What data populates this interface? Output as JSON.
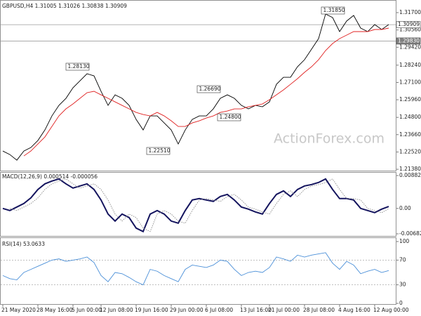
{
  "chart_data": [
    {
      "type": "line",
      "title": "GBPUSD,H4 1.31005 1.31026 1.30838 1.30909",
      "watermark": "ActionForex.com",
      "categories": [
        "21 May 2020",
        null,
        null,
        null,
        null,
        "28 May 16:00",
        null,
        null,
        null,
        null,
        "5 Jun 00:00",
        null,
        null,
        null,
        "12 Jun 08:00",
        null,
        null,
        null,
        null,
        "19 Jun 16:00",
        null,
        null,
        null,
        null,
        "29 Jun 00:00",
        null,
        null,
        null,
        null,
        "6 Jul 08:00",
        null,
        null,
        null,
        null,
        "13 Jul 16:00",
        null,
        null,
        null,
        "21 Jul 00:00",
        null,
        null,
        null,
        null,
        "28 Jul 08:00",
        null,
        null,
        null,
        null,
        "4 Aug 16:00",
        null,
        null,
        null,
        null,
        "12 Aug 00:00",
        null,
        null
      ],
      "series": [
        {
          "color": "#000000",
          "values": [
            1.22583,
            1.22351,
            1.21981,
            1.22583,
            1.22814,
            1.23277,
            1.23971,
            1.24897,
            1.25591,
            1.26054,
            1.26748,
            1.27211,
            1.27674,
            1.27535,
            1.26517,
            1.25591,
            1.26285,
            1.26054,
            1.25591,
            1.24665,
            1.23971,
            1.24897,
            1.24897,
            1.24434,
            1.23971,
            1.23046,
            1.23971,
            1.24665,
            1.24897,
            1.24897,
            1.2536,
            1.26054,
            1.26285,
            1.26054,
            1.25591,
            1.2536,
            1.25591,
            1.25498,
            1.25822,
            1.26979,
            1.27442,
            1.27442,
            1.28136,
            1.28599,
            1.29293,
            1.29988,
            1.31607,
            1.31376,
            1.3045,
            1.31145,
            1.31515,
            1.30682,
            1.3045,
            1.30913,
            1.30589,
            1.30913
          ]
        },
        {
          "color": "#e02020",
          "values": [
            null,
            null,
            null,
            1.22259,
            1.22583,
            1.23046,
            1.23508,
            1.24203,
            1.24897,
            1.2536,
            1.25684,
            1.26054,
            1.26424,
            1.26517,
            1.26285,
            1.26054,
            1.25822,
            1.25591,
            1.2536,
            1.25128,
            1.24989,
            1.24897,
            1.25128,
            1.24897,
            1.24573,
            1.24203,
            1.24203,
            1.24434,
            1.24573,
            1.24758,
            1.24897,
            1.25128,
            1.25221,
            1.2536,
            1.2536,
            1.25498,
            1.25591,
            1.25684,
            1.25961,
            1.26285,
            1.26609,
            1.26979,
            1.2735,
            1.27766,
            1.28136,
            1.28599,
            1.29201,
            1.29664,
            1.29988,
            1.30219,
            1.3045,
            1.3045,
            1.3045,
            1.30589,
            1.30589,
            1.30682
          ]
        }
      ],
      "ylim": [
        1.2129,
        1.3244
      ],
      "yticks": [
        {
          "value": 1.317,
          "label": "1.31700"
        },
        {
          "value": 1.3056,
          "label": "1.30560"
        },
        {
          "value": 1.2942,
          "label": "1.29420"
        },
        {
          "value": 1.2824,
          "label": "1.28240"
        },
        {
          "value": 1.271,
          "label": "1.27100"
        },
        {
          "value": 1.2596,
          "label": "1.25960"
        },
        {
          "value": 1.248,
          "label": "1.24800"
        },
        {
          "value": 1.2366,
          "label": "1.23660"
        },
        {
          "value": 1.2252,
          "label": "1.22520"
        },
        {
          "value": 1.2138,
          "label": "1.21380"
        }
      ],
      "price_lines": [
        {
          "value": 1.30909,
          "label": "1.30909"
        },
        {
          "value": 1.2983,
          "label": "1.29830"
        }
      ],
      "annotations": [
        "1.31850",
        "1.28130",
        "1.26690",
        "1.24800",
        "1.22510"
      ]
    },
    {
      "type": "line",
      "title": "MACD(12,26,9) 0.000514 -0.000056",
      "series": [
        {
          "color": "#14145e",
          "values": [
            0,
            -0.000566,
            0.000377,
            0.00132,
            0.00283,
            0.00509,
            0.0066,
            0.00735,
            0.00792,
            0.0066,
            0.00547,
            0.00603,
            0.0066,
            0.00509,
            0.00226,
            -0.00151,
            -0.00339,
            -0.00151,
            -0.00245,
            -0.00528,
            -0.00622,
            -0.00151,
            -0.000566,
            -0.00151,
            -0.00339,
            -0.00396,
            -0.000566,
            0.00226,
            0.00264,
            0.00226,
            0.00189,
            0.0032,
            0.00377,
            0.00226,
            0.000377,
            -0.000189,
            -0.000943,
            -0.00151,
            0.00132,
            0.00377,
            0.00471,
            0.0032,
            0.00509,
            0.00603,
            0.00641,
            0.00697,
            0.00792,
            0.00509,
            0.00264,
            0.00264,
            0.00226,
            0,
            -0.000566,
            -0.00113,
            -0.000189,
            0.000514
          ]
        },
        {
          "color": "#8a8a8a",
          "dashed": true,
          "values": [
            null,
            0,
            -0.000566,
            0.000377,
            0.00132,
            0.00283,
            0.00509,
            0.0066,
            0.00735,
            0.00792,
            0.0066,
            0.00547,
            0.00603,
            0.0066,
            0.00509,
            0.00226,
            -0.00151,
            -0.00339,
            -0.00151,
            -0.00245,
            -0.00528,
            -0.00622,
            -0.00151,
            -0.000566,
            -0.00151,
            -0.00339,
            -0.00396,
            -0.000566,
            0.00226,
            0.00264,
            0.00226,
            0.00189,
            0.0032,
            0.00377,
            0.00226,
            0.000377,
            -0.000189,
            -0.000943,
            -0.00151,
            0.00132,
            0.00377,
            0.00471,
            0.0032,
            0.00509,
            0.00603,
            0.00641,
            0.00697,
            0.00792,
            0.00509,
            0.00264,
            0.00264,
            0.00226,
            0,
            -0.000566,
            -0.00113,
            -5.6e-05
          ]
        }
      ],
      "ylim": [
        -0.00739,
        0.00977
      ],
      "yticks": [
        0.008824,
        {
          "value": 0,
          "label": "0.00"
        },
        -0.006825
      ]
    },
    {
      "type": "line",
      "title": "RSI(14) 53.0633",
      "series": [
        {
          "color": "#4a8fd8",
          "values": [
            45,
            40,
            38,
            50,
            55,
            60,
            65,
            70,
            72,
            68,
            70,
            72,
            75,
            66,
            45,
            35,
            50,
            48,
            42,
            35,
            30,
            55,
            52,
            45,
            40,
            35,
            55,
            62,
            60,
            58,
            62,
            70,
            68,
            55,
            45,
            50,
            52,
            50,
            58,
            75,
            72,
            68,
            78,
            75,
            78,
            80,
            82,
            65,
            55,
            68,
            62,
            48,
            52,
            55,
            50,
            53.0633
          ]
        }
      ],
      "ylim": [
        0,
        100
      ],
      "yticks": [
        100,
        70,
        30,
        0
      ],
      "levels": [
        70,
        30
      ]
    }
  ]
}
